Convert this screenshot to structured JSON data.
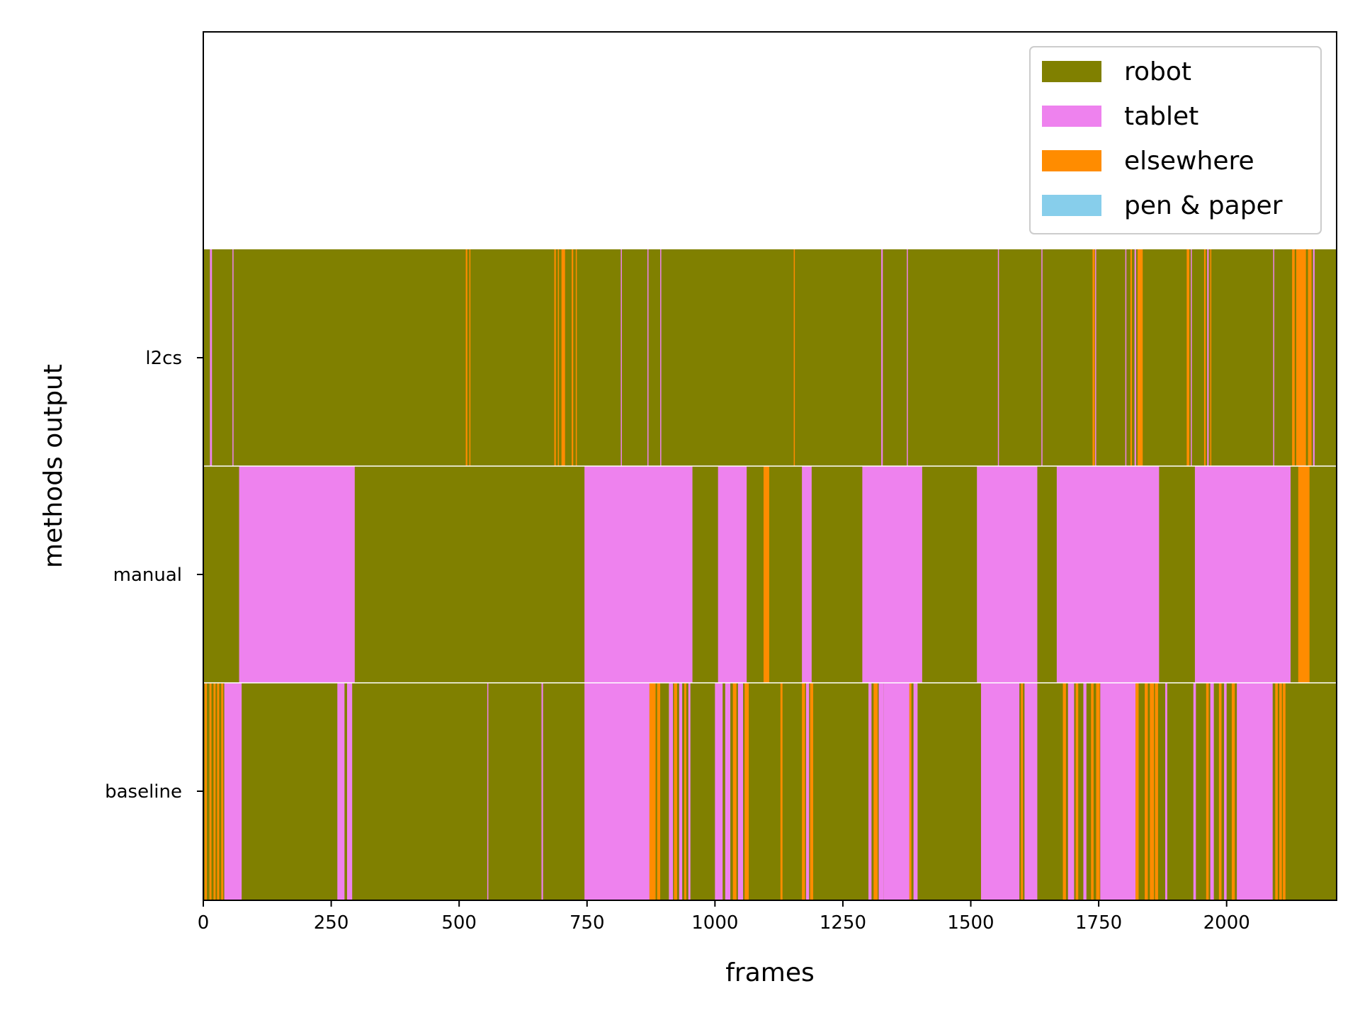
{
  "chart_data": {
    "type": "bar",
    "orientation": "horizontal-timeline",
    "title": "",
    "xlabel": "frames",
    "ylabel": "methods output",
    "xlim": [
      0,
      2215
    ],
    "x_ticks": [
      "0",
      "250",
      "500",
      "750",
      "1000",
      "1250",
      "1500",
      "1750",
      "2000"
    ],
    "x_tick_values": [
      0,
      250,
      500,
      750,
      1000,
      1250,
      1500,
      1750,
      2000
    ],
    "categories": [
      "l2cs",
      "manual",
      "baseline"
    ],
    "legend": {
      "placement": "top-right",
      "entries": [
        {
          "label": "robot",
          "color": "#808000"
        },
        {
          "label": "tablet",
          "color": "#EE82EE"
        },
        {
          "label": "elsewhere",
          "color": "#FF8C00"
        },
        {
          "label": "pen & paper",
          "color": "#87CEEB"
        }
      ]
    },
    "series": [
      {
        "row": "l2cs",
        "default_state": "robot",
        "segments": [
          {
            "start": 13,
            "end": 17,
            "state": "tablet"
          },
          {
            "start": 57,
            "end": 59,
            "state": "tablet"
          },
          {
            "start": 513,
            "end": 516,
            "state": "elsewhere"
          },
          {
            "start": 520,
            "end": 522,
            "state": "elsewhere"
          },
          {
            "start": 686,
            "end": 689,
            "state": "elsewhere"
          },
          {
            "start": 693,
            "end": 695,
            "state": "elsewhere"
          },
          {
            "start": 700,
            "end": 707,
            "state": "elsewhere"
          },
          {
            "start": 720,
            "end": 723,
            "state": "elsewhere"
          },
          {
            "start": 728,
            "end": 730,
            "state": "elsewhere"
          },
          {
            "start": 816,
            "end": 818,
            "state": "tablet"
          },
          {
            "start": 868,
            "end": 870,
            "state": "tablet"
          },
          {
            "start": 893,
            "end": 895,
            "state": "tablet"
          },
          {
            "start": 1154,
            "end": 1156,
            "state": "elsewhere"
          },
          {
            "start": 1325,
            "end": 1328,
            "state": "tablet"
          },
          {
            "start": 1375,
            "end": 1377,
            "state": "tablet"
          },
          {
            "start": 1553,
            "end": 1555,
            "state": "tablet"
          },
          {
            "start": 1638,
            "end": 1640,
            "state": "tablet"
          },
          {
            "start": 1738,
            "end": 1742,
            "state": "elsewhere"
          },
          {
            "start": 1743,
            "end": 1745,
            "state": "tablet"
          },
          {
            "start": 1802,
            "end": 1804,
            "state": "tablet"
          },
          {
            "start": 1812,
            "end": 1815,
            "state": "elsewhere"
          },
          {
            "start": 1820,
            "end": 1823,
            "state": "tablet"
          },
          {
            "start": 1826,
            "end": 1836,
            "state": "elsewhere"
          },
          {
            "start": 1922,
            "end": 1927,
            "state": "elsewhere"
          },
          {
            "start": 1930,
            "end": 1932,
            "state": "tablet"
          },
          {
            "start": 1956,
            "end": 1959,
            "state": "elsewhere"
          },
          {
            "start": 1962,
            "end": 1965,
            "state": "tablet"
          },
          {
            "start": 1968,
            "end": 1970,
            "state": "elsewhere"
          },
          {
            "start": 2091,
            "end": 2093,
            "state": "tablet"
          },
          {
            "start": 2128,
            "end": 2133,
            "state": "elsewhere"
          },
          {
            "start": 2136,
            "end": 2155,
            "state": "elsewhere"
          },
          {
            "start": 2159,
            "end": 2166,
            "state": "elsewhere"
          },
          {
            "start": 2169,
            "end": 2172,
            "state": "tablet"
          }
        ]
      },
      {
        "row": "manual",
        "default_state": "robot",
        "segments": [
          {
            "start": 70,
            "end": 296,
            "state": "tablet"
          },
          {
            "start": 745,
            "end": 956,
            "state": "tablet"
          },
          {
            "start": 1006,
            "end": 1062,
            "state": "tablet"
          },
          {
            "start": 1095,
            "end": 1106,
            "state": "elsewhere"
          },
          {
            "start": 1170,
            "end": 1189,
            "state": "tablet"
          },
          {
            "start": 1288,
            "end": 1405,
            "state": "tablet"
          },
          {
            "start": 1512,
            "end": 1630,
            "state": "tablet"
          },
          {
            "start": 1668,
            "end": 1868,
            "state": "tablet"
          },
          {
            "start": 1938,
            "end": 2125,
            "state": "tablet"
          },
          {
            "start": 2140,
            "end": 2162,
            "state": "elsewhere"
          }
        ]
      },
      {
        "row": "baseline",
        "default_state": "robot",
        "segments": [
          {
            "start": 3,
            "end": 7,
            "state": "elsewhere"
          },
          {
            "start": 12,
            "end": 16,
            "state": "elsewhere"
          },
          {
            "start": 20,
            "end": 24,
            "state": "elsewhere"
          },
          {
            "start": 27,
            "end": 31,
            "state": "elsewhere"
          },
          {
            "start": 35,
            "end": 39,
            "state": "elsewhere"
          },
          {
            "start": 41,
            "end": 75,
            "state": "tablet"
          },
          {
            "start": 262,
            "end": 276,
            "state": "tablet"
          },
          {
            "start": 281,
            "end": 291,
            "state": "tablet"
          },
          {
            "start": 555,
            "end": 557,
            "state": "tablet"
          },
          {
            "start": 661,
            "end": 664,
            "state": "tablet"
          },
          {
            "start": 745,
            "end": 872,
            "state": "tablet"
          },
          {
            "start": 872,
            "end": 884,
            "state": "elsewhere"
          },
          {
            "start": 887,
            "end": 893,
            "state": "elsewhere"
          },
          {
            "start": 910,
            "end": 918,
            "state": "tablet"
          },
          {
            "start": 920,
            "end": 926,
            "state": "elsewhere"
          },
          {
            "start": 930,
            "end": 936,
            "state": "tablet"
          },
          {
            "start": 940,
            "end": 944,
            "state": "elsewhere"
          },
          {
            "start": 948,
            "end": 952,
            "state": "tablet"
          },
          {
            "start": 1000,
            "end": 1015,
            "state": "tablet"
          },
          {
            "start": 1020,
            "end": 1030,
            "state": "tablet"
          },
          {
            "start": 1035,
            "end": 1042,
            "state": "elsewhere"
          },
          {
            "start": 1045,
            "end": 1055,
            "state": "tablet"
          },
          {
            "start": 1058,
            "end": 1066,
            "state": "elsewhere"
          },
          {
            "start": 1128,
            "end": 1132,
            "state": "elsewhere"
          },
          {
            "start": 1170,
            "end": 1176,
            "state": "elsewhere"
          },
          {
            "start": 1178,
            "end": 1184,
            "state": "tablet"
          },
          {
            "start": 1186,
            "end": 1192,
            "state": "elsewhere"
          },
          {
            "start": 1300,
            "end": 1306,
            "state": "tablet"
          },
          {
            "start": 1310,
            "end": 1318,
            "state": "elsewhere"
          },
          {
            "start": 1320,
            "end": 1330,
            "state": "tablet"
          },
          {
            "start": 1330,
            "end": 1380,
            "state": "tablet"
          },
          {
            "start": 1380,
            "end": 1384,
            "state": "elsewhere"
          },
          {
            "start": 1388,
            "end": 1396,
            "state": "tablet"
          },
          {
            "start": 1520,
            "end": 1595,
            "state": "tablet"
          },
          {
            "start": 1598,
            "end": 1602,
            "state": "elsewhere"
          },
          {
            "start": 1605,
            "end": 1630,
            "state": "tablet"
          },
          {
            "start": 1680,
            "end": 1686,
            "state": "elsewhere"
          },
          {
            "start": 1690,
            "end": 1702,
            "state": "tablet"
          },
          {
            "start": 1705,
            "end": 1710,
            "state": "elsewhere"
          },
          {
            "start": 1720,
            "end": 1726,
            "state": "tablet"
          },
          {
            "start": 1735,
            "end": 1740,
            "state": "elsewhere"
          },
          {
            "start": 1745,
            "end": 1752,
            "state": "elsewhere"
          },
          {
            "start": 1753,
            "end": 1822,
            "state": "tablet"
          },
          {
            "start": 1822,
            "end": 1828,
            "state": "elsewhere"
          },
          {
            "start": 1840,
            "end": 1846,
            "state": "elsewhere"
          },
          {
            "start": 1850,
            "end": 1858,
            "state": "elsewhere"
          },
          {
            "start": 1860,
            "end": 1866,
            "state": "elsewhere"
          },
          {
            "start": 1880,
            "end": 1884,
            "state": "tablet"
          },
          {
            "start": 1935,
            "end": 1940,
            "state": "tablet"
          },
          {
            "start": 1960,
            "end": 1965,
            "state": "elsewhere"
          },
          {
            "start": 1968,
            "end": 1975,
            "state": "tablet"
          },
          {
            "start": 1985,
            "end": 1990,
            "state": "elsewhere"
          },
          {
            "start": 1995,
            "end": 2000,
            "state": "tablet"
          },
          {
            "start": 2010,
            "end": 2016,
            "state": "elsewhere"
          },
          {
            "start": 2020,
            "end": 2090,
            "state": "tablet"
          },
          {
            "start": 2095,
            "end": 2100,
            "state": "elsewhere"
          },
          {
            "start": 2103,
            "end": 2108,
            "state": "elsewhere"
          },
          {
            "start": 2110,
            "end": 2115,
            "state": "elsewhere"
          }
        ]
      }
    ]
  }
}
